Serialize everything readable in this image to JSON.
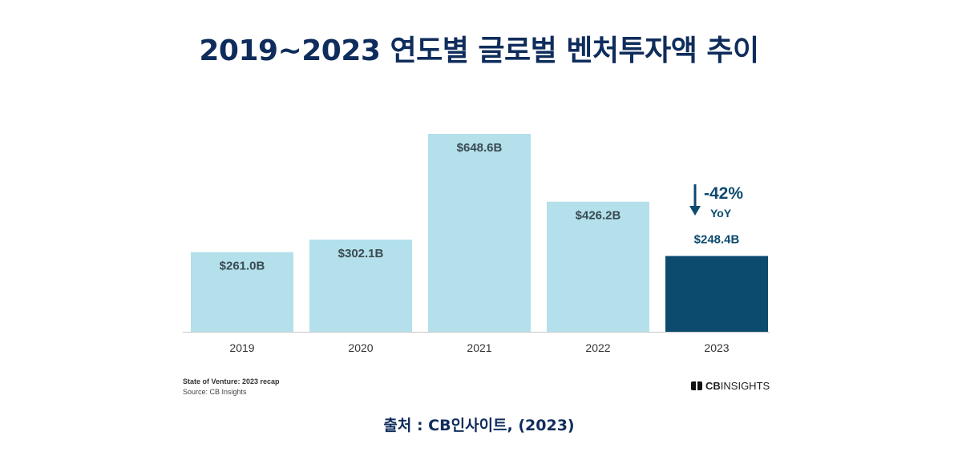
{
  "title": "2019~2023 연도별 글로벌 벤처투자액 추이",
  "chart_data": {
    "type": "bar",
    "categories": [
      "2019",
      "2020",
      "2021",
      "2022",
      "2023"
    ],
    "values": [
      261.0,
      302.1,
      648.6,
      426.2,
      248.4
    ],
    "value_labels": [
      "$261.0B",
      "$302.1B",
      "$648.6B",
      "$426.2B",
      "$248.4B"
    ],
    "colors": [
      "#b3e0ea",
      "#b3e0ea",
      "#b3e0ea",
      "#b3e0ea",
      "#0c4a6e"
    ],
    "label_color": "#3a4a52",
    "ylim": [
      0,
      648.6
    ],
    "grid": false,
    "annotation": {
      "category": "2023",
      "text": "-42%",
      "subtext": "YoY",
      "icon": "down-arrow-icon",
      "color": "#0c4a6e"
    }
  },
  "footer": {
    "report": "State of Venture: 2023 recap",
    "source": "Source: CB Insights",
    "logo_bold": "CB",
    "logo_rest": "INSIGHTS"
  },
  "caption": "출처 : CB인사이트, (2023)"
}
